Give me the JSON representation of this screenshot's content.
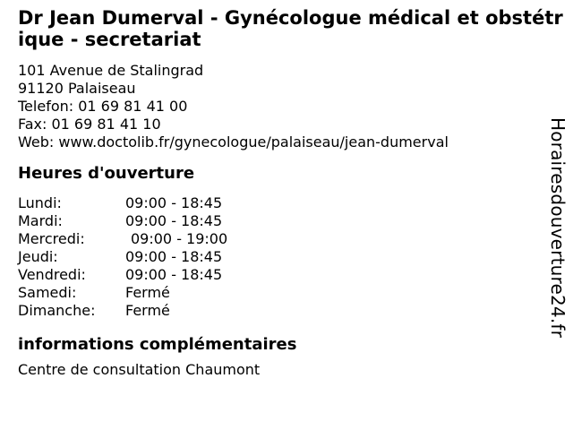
{
  "header": {
    "title": "Dr Jean Dumerval - Gynécologue médical et obstétrique - secretariat"
  },
  "contact": {
    "address_street": "101 Avenue de Stalingrad",
    "address_city": "91120 Palaiseau",
    "phone_line": "Telefon: 01 69 81 41 00",
    "fax_line": "Fax: 01 69 81 41 10",
    "web_line": "Web: www.doctolib.fr/gynecologue/palaiseau/jean-dumerval"
  },
  "hours": {
    "heading": "Heures d'ouverture",
    "rows": [
      {
        "day": "Lundi:",
        "time": "09:00 - 18:45"
      },
      {
        "day": "Mardi:",
        "time": "09:00 - 18:45"
      },
      {
        "day": "Mercredi:",
        "time": "09:00 - 19:00"
      },
      {
        "day": "Jeudi:",
        "time": "09:00 - 18:45"
      },
      {
        "day": "Vendredi:",
        "time": "09:00 - 18:45"
      },
      {
        "day": "Samedi:",
        "time": "Fermé"
      },
      {
        "day": "Dimanche:",
        "time": "Fermé"
      }
    ]
  },
  "extra_info": {
    "heading": "informations complémentaires",
    "text": "Centre de consultation Chaumont"
  },
  "watermark": {
    "site_name": "Horairesdouverture24.fr"
  },
  "colors": {
    "background": "#ffffff",
    "text": "#000000"
  }
}
